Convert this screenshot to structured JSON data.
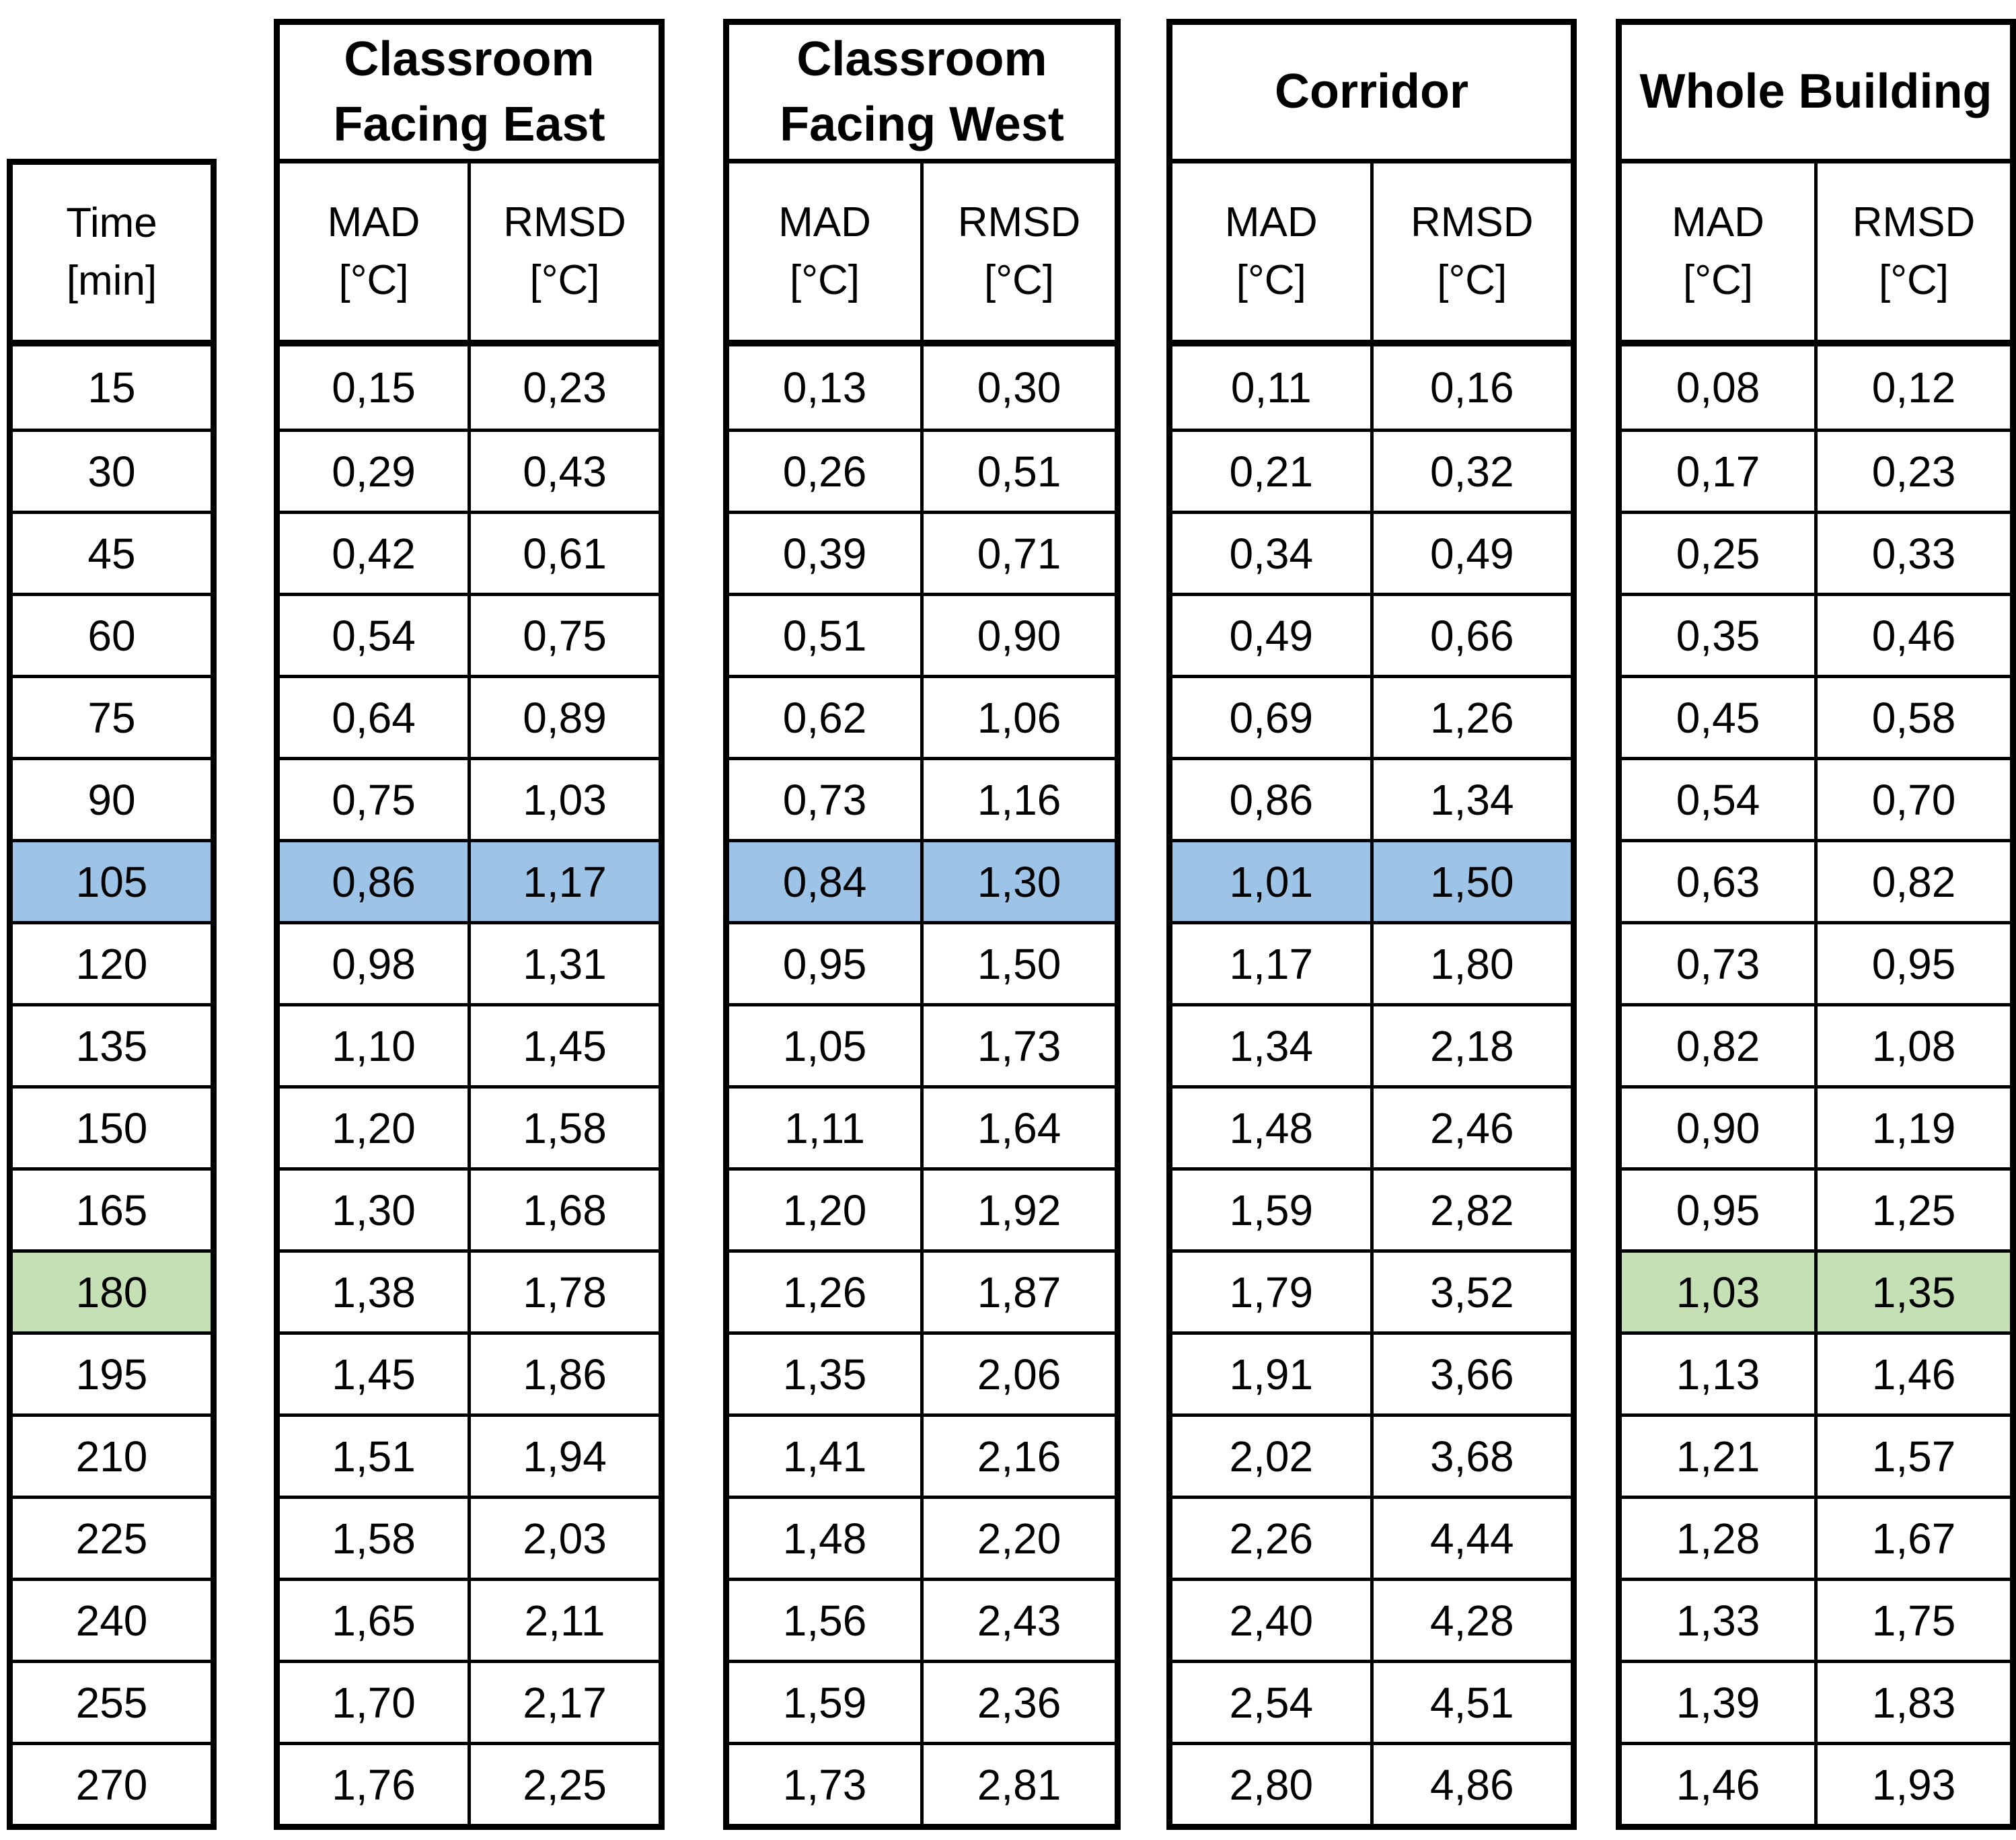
{
  "table": {
    "time_header": {
      "line1": "Time",
      "line2": "[min]"
    },
    "subheaders": {
      "mad": "MAD",
      "rmsd": "RMSD",
      "unit": "[°C]"
    },
    "groups": [
      {
        "title_lines": [
          "Classroom",
          "Facing East"
        ]
      },
      {
        "title_lines": [
          "Classroom",
          "Facing West"
        ]
      },
      {
        "title_lines": [
          "Corridor"
        ]
      },
      {
        "title_lines": [
          "Whole Building"
        ]
      }
    ],
    "highlight_colors": {
      "blue": "#9DC3E6",
      "green": "#C5E0B4"
    },
    "rows": [
      {
        "time": "15",
        "values": [
          [
            "0,15",
            "0,23"
          ],
          [
            "0,13",
            "0,30"
          ],
          [
            "0,11",
            "0,16"
          ],
          [
            "0,08",
            "0,12"
          ]
        ]
      },
      {
        "time": "30",
        "values": [
          [
            "0,29",
            "0,43"
          ],
          [
            "0,26",
            "0,51"
          ],
          [
            "0,21",
            "0,32"
          ],
          [
            "0,17",
            "0,23"
          ]
        ]
      },
      {
        "time": "45",
        "values": [
          [
            "0,42",
            "0,61"
          ],
          [
            "0,39",
            "0,71"
          ],
          [
            "0,34",
            "0,49"
          ],
          [
            "0,25",
            "0,33"
          ]
        ]
      },
      {
        "time": "60",
        "values": [
          [
            "0,54",
            "0,75"
          ],
          [
            "0,51",
            "0,90"
          ],
          [
            "0,49",
            "0,66"
          ],
          [
            "0,35",
            "0,46"
          ]
        ]
      },
      {
        "time": "75",
        "values": [
          [
            "0,64",
            "0,89"
          ],
          [
            "0,62",
            "1,06"
          ],
          [
            "0,69",
            "1,26"
          ],
          [
            "0,45",
            "0,58"
          ]
        ]
      },
      {
        "time": "90",
        "values": [
          [
            "0,75",
            "1,03"
          ],
          [
            "0,73",
            "1,16"
          ],
          [
            "0,86",
            "1,34"
          ],
          [
            "0,54",
            "0,70"
          ]
        ]
      },
      {
        "time": "105",
        "values": [
          [
            "0,86",
            "1,17"
          ],
          [
            "0,84",
            "1,30"
          ],
          [
            "1,01",
            "1,50"
          ],
          [
            "0,63",
            "0,82"
          ]
        ],
        "highlight": {
          "color": "blue",
          "time": true,
          "groups": [
            true,
            true,
            true,
            false
          ]
        }
      },
      {
        "time": "120",
        "values": [
          [
            "0,98",
            "1,31"
          ],
          [
            "0,95",
            "1,50"
          ],
          [
            "1,17",
            "1,80"
          ],
          [
            "0,73",
            "0,95"
          ]
        ]
      },
      {
        "time": "135",
        "values": [
          [
            "1,10",
            "1,45"
          ],
          [
            "1,05",
            "1,73"
          ],
          [
            "1,34",
            "2,18"
          ],
          [
            "0,82",
            "1,08"
          ]
        ]
      },
      {
        "time": "150",
        "values": [
          [
            "1,20",
            "1,58"
          ],
          [
            "1,11",
            "1,64"
          ],
          [
            "1,48",
            "2,46"
          ],
          [
            "0,90",
            "1,19"
          ]
        ]
      },
      {
        "time": "165",
        "values": [
          [
            "1,30",
            "1,68"
          ],
          [
            "1,20",
            "1,92"
          ],
          [
            "1,59",
            "2,82"
          ],
          [
            "0,95",
            "1,25"
          ]
        ]
      },
      {
        "time": "180",
        "values": [
          [
            "1,38",
            "1,78"
          ],
          [
            "1,26",
            "1,87"
          ],
          [
            "1,79",
            "3,52"
          ],
          [
            "1,03",
            "1,35"
          ]
        ],
        "highlight": {
          "color": "green",
          "time": true,
          "groups": [
            false,
            false,
            false,
            true
          ]
        }
      },
      {
        "time": "195",
        "values": [
          [
            "1,45",
            "1,86"
          ],
          [
            "1,35",
            "2,06"
          ],
          [
            "1,91",
            "3,66"
          ],
          [
            "1,13",
            "1,46"
          ]
        ]
      },
      {
        "time": "210",
        "values": [
          [
            "1,51",
            "1,94"
          ],
          [
            "1,41",
            "2,16"
          ],
          [
            "2,02",
            "3,68"
          ],
          [
            "1,21",
            "1,57"
          ]
        ]
      },
      {
        "time": "225",
        "values": [
          [
            "1,58",
            "2,03"
          ],
          [
            "1,48",
            "2,20"
          ],
          [
            "2,26",
            "4,44"
          ],
          [
            "1,28",
            "1,67"
          ]
        ]
      },
      {
        "time": "240",
        "values": [
          [
            "1,65",
            "2,11"
          ],
          [
            "1,56",
            "2,43"
          ],
          [
            "2,40",
            "4,28"
          ],
          [
            "1,33",
            "1,75"
          ]
        ]
      },
      {
        "time": "255",
        "values": [
          [
            "1,70",
            "2,17"
          ],
          [
            "1,59",
            "2,36"
          ],
          [
            "2,54",
            "4,51"
          ],
          [
            "1,39",
            "1,83"
          ]
        ]
      },
      {
        "time": "270",
        "values": [
          [
            "1,76",
            "2,25"
          ],
          [
            "1,73",
            "2,81"
          ],
          [
            "2,80",
            "4,86"
          ],
          [
            "1,46",
            "1,93"
          ]
        ]
      }
    ]
  }
}
